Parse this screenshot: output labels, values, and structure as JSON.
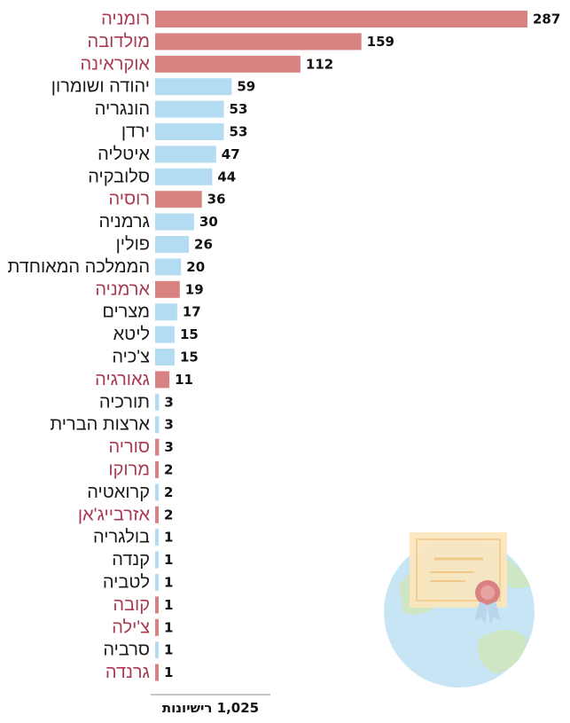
{
  "chart_data": {
    "type": "bar",
    "orientation": "horizontal",
    "categories": [
      "רומניה",
      "מולדובה",
      "אוקראינה",
      "יהודה ושומרון",
      "הונגריה",
      "ירדן",
      "איטליה",
      "סלובקיה",
      "רוסיה",
      "גרמניה",
      "פולין",
      "הממלכה המאוחדת",
      "ארמניה",
      "מצרים",
      "ליטא",
      "צ'כיה",
      "גאורגיה",
      "תורכיה",
      "ארצות הברית",
      "סוריה",
      "מרוקו",
      "קרואטיה",
      "אזרבייג'אן",
      "בולגריה",
      "קנדה",
      "לטביה",
      "קובה",
      "צ'ילה",
      "סרביה",
      "גרנדה"
    ],
    "values": [
      287,
      159,
      112,
      59,
      53,
      53,
      47,
      44,
      36,
      30,
      26,
      20,
      19,
      17,
      15,
      15,
      11,
      3,
      3,
      3,
      2,
      2,
      2,
      1,
      1,
      1,
      1,
      1,
      1,
      1
    ],
    "highlighted": [
      true,
      true,
      true,
      false,
      false,
      false,
      false,
      false,
      true,
      false,
      false,
      false,
      true,
      false,
      false,
      false,
      true,
      false,
      false,
      true,
      true,
      false,
      true,
      false,
      false,
      false,
      true,
      true,
      false,
      true
    ],
    "xlim": [
      0,
      287
    ],
    "grid": false,
    "legend": "none",
    "total_label": "1,025 רישיונות"
  },
  "colors": {
    "highlight_bar": "#d98282",
    "normal_bar": "#b3dcf3",
    "highlight_text": "#a83a52",
    "normal_text": "#1a1a1a",
    "axis": "#888888",
    "globe": "#c7e5f4",
    "land": "#cfe6c5",
    "certificate": "#fbe6bd",
    "ribbon": "#d98282"
  },
  "decoration": {
    "icon": "globe-certificate-icon"
  }
}
